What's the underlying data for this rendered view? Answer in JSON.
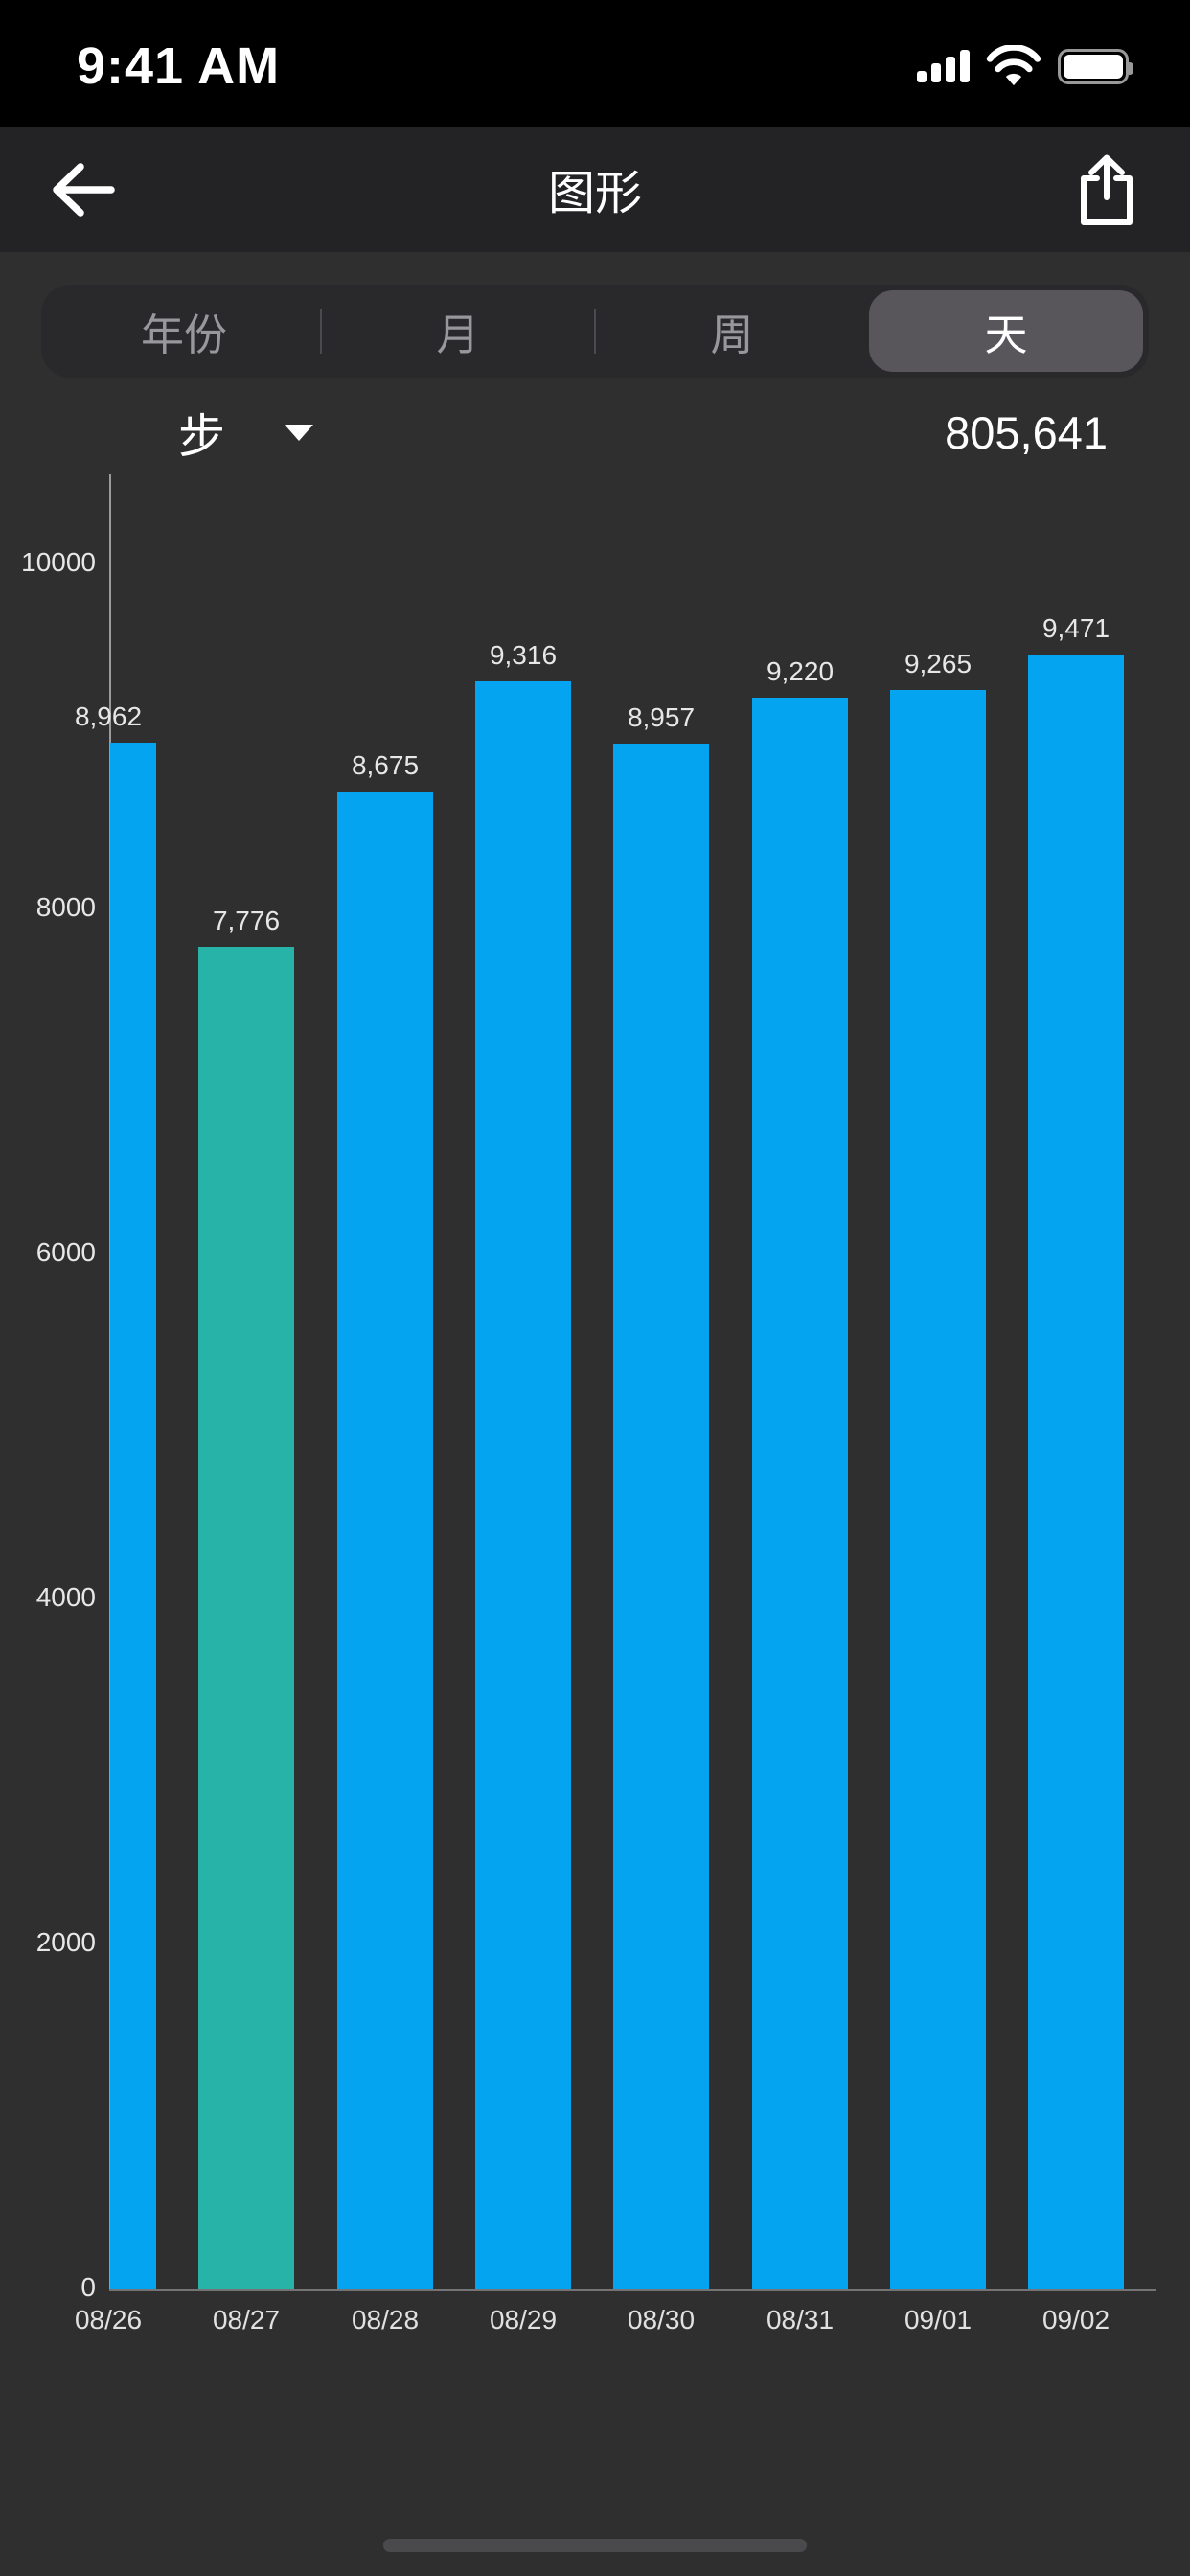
{
  "status_bar": {
    "time": "9:41 AM",
    "icons": [
      "cellular-signal-icon",
      "wifi-icon",
      "battery-icon"
    ]
  },
  "header": {
    "title": "图形",
    "back_icon": "back-arrow-icon",
    "share_icon": "share-icon"
  },
  "range_tabs": {
    "items": [
      "年份",
      "月",
      "周",
      "天"
    ],
    "selected_index": 3
  },
  "metric": {
    "label": "步",
    "dropdown_icon": "chevron-down-icon",
    "total": "805,641"
  },
  "chart_data": {
    "type": "bar",
    "categories": [
      "08/26",
      "08/27",
      "08/28",
      "08/29",
      "08/30",
      "08/31",
      "09/01",
      "09/02"
    ],
    "values": [
      8962,
      7776,
      8675,
      9316,
      8957,
      9220,
      9265,
      9471
    ],
    "value_labels": [
      "8,962",
      "7,776",
      "8,675",
      "9,316",
      "8,957",
      "9,220",
      "9,265",
      "9,471"
    ],
    "highlight_index": 1,
    "bar_color": "#05A4F1",
    "highlight_color": "#28B3A8",
    "y_ticks": [
      0,
      2000,
      4000,
      6000,
      8000,
      10000
    ],
    "y_tick_labels": [
      "0",
      "2000",
      "4000",
      "6000",
      "8000",
      "10000"
    ],
    "ylim": [
      0,
      10500
    ],
    "title": "",
    "xlabel": "",
    "ylabel": "",
    "grid": false,
    "legend_position": "none"
  },
  "colors": {
    "page_bg": "#302F30",
    "status_bg": "#000000",
    "header_bg": "#232224",
    "segment_bg": "#29282B",
    "segment_selected_bg": "#58565B",
    "axis_line": "#9B9A9C",
    "label_text": "#E8E7E8"
  }
}
